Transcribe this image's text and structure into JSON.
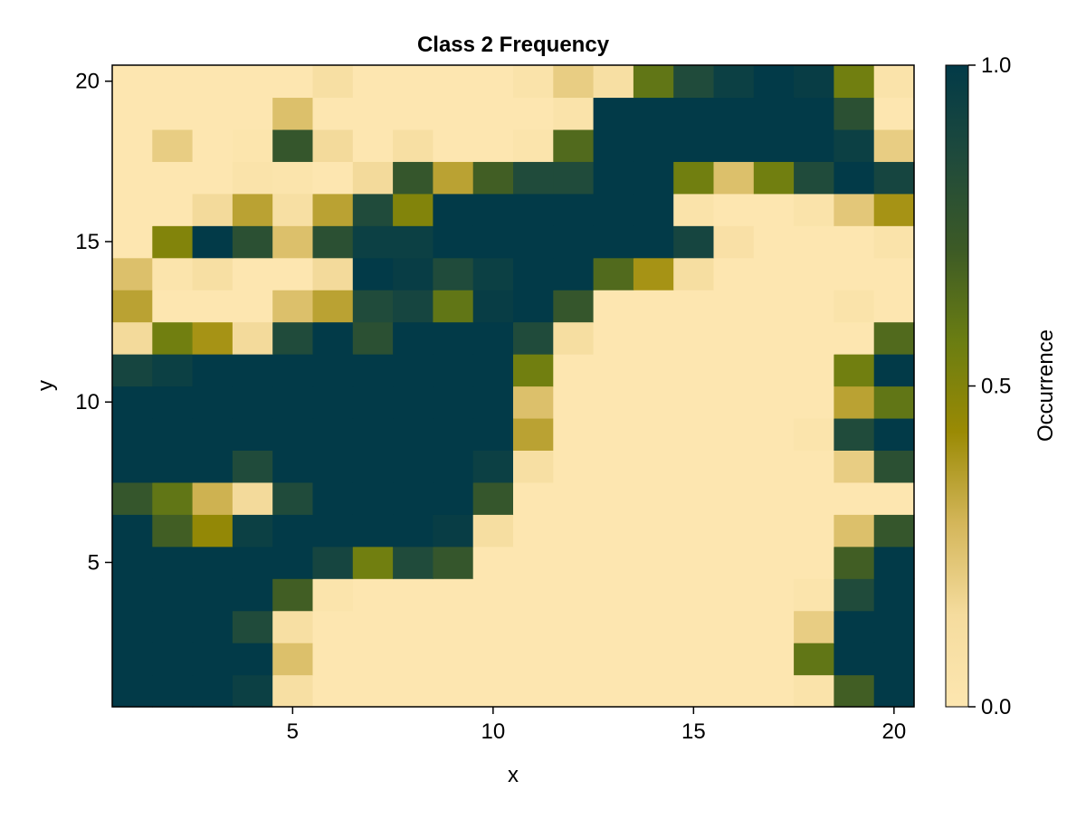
{
  "chart_data": {
    "type": "heatmap",
    "title": "Class 2 Frequency",
    "xlabel": "x",
    "ylabel": "y",
    "x": [
      1,
      2,
      3,
      4,
      5,
      6,
      7,
      8,
      9,
      10,
      11,
      12,
      13,
      14,
      15,
      16,
      17,
      18,
      19,
      20
    ],
    "y": [
      1,
      2,
      3,
      4,
      5,
      6,
      7,
      8,
      9,
      10,
      11,
      12,
      13,
      14,
      15,
      16,
      17,
      18,
      19,
      20
    ],
    "xlim": [
      0.5,
      20.5
    ],
    "ylim": [
      0.5,
      20.5
    ],
    "xticks": [
      5,
      10,
      15,
      20
    ],
    "yticks": [
      5,
      10,
      15,
      20
    ],
    "colorbar": {
      "label": "Occurrence",
      "range": [
        0.0,
        1.0
      ],
      "ticks": [
        0.0,
        0.5,
        1.0
      ],
      "tick_labels": [
        "0.0",
        "0.5",
        "1.0"
      ],
      "colormap": [
        "#fde6b0",
        "#f5dc9e",
        "#d4b65a",
        "#9a8a04",
        "#6a7d12",
        "#3c5a26",
        "#1f4a3c",
        "#023a48"
      ]
    },
    "values": [
      [
        1.0,
        1.0,
        1.0,
        0.95,
        0.1,
        0.0,
        0.0,
        0.0,
        0.0,
        0.0,
        0.0,
        0.0,
        0.0,
        0.0,
        0.0,
        0.0,
        0.0,
        0.05,
        0.7,
        1.0
      ],
      [
        1.0,
        1.0,
        1.0,
        1.0,
        0.25,
        0.0,
        0.0,
        0.0,
        0.0,
        0.0,
        0.0,
        0.0,
        0.0,
        0.0,
        0.0,
        0.0,
        0.0,
        0.6,
        1.0,
        1.0
      ],
      [
        1.0,
        1.0,
        1.0,
        0.85,
        0.1,
        0.0,
        0.0,
        0.0,
        0.0,
        0.0,
        0.0,
        0.0,
        0.0,
        0.0,
        0.0,
        0.0,
        0.0,
        0.2,
        1.0,
        1.0
      ],
      [
        1.0,
        1.0,
        1.0,
        1.0,
        0.7,
        0.03,
        0.0,
        0.0,
        0.0,
        0.0,
        0.0,
        0.0,
        0.0,
        0.0,
        0.0,
        0.0,
        0.0,
        0.03,
        0.85,
        1.0
      ],
      [
        1.0,
        1.0,
        1.0,
        1.0,
        1.0,
        0.9,
        0.55,
        0.85,
        0.75,
        0.0,
        0.0,
        0.0,
        0.0,
        0.0,
        0.0,
        0.0,
        0.0,
        0.0,
        0.7,
        1.0
      ],
      [
        1.0,
        0.7,
        0.45,
        0.95,
        1.0,
        1.0,
        1.0,
        1.0,
        0.97,
        0.12,
        0.0,
        0.0,
        0.0,
        0.0,
        0.0,
        0.0,
        0.0,
        0.0,
        0.25,
        0.75
      ],
      [
        0.75,
        0.6,
        0.3,
        0.15,
        0.85,
        1.0,
        1.0,
        1.0,
        1.0,
        0.75,
        0.0,
        0.0,
        0.0,
        0.0,
        0.0,
        0.0,
        0.0,
        0.0,
        0.0,
        0.0
      ],
      [
        1.0,
        1.0,
        1.0,
        0.85,
        1.0,
        1.0,
        1.0,
        1.0,
        1.0,
        0.95,
        0.1,
        0.0,
        0.0,
        0.0,
        0.0,
        0.0,
        0.0,
        0.0,
        0.2,
        0.8
      ],
      [
        1.0,
        1.0,
        1.0,
        1.0,
        1.0,
        1.0,
        1.0,
        1.0,
        1.0,
        1.0,
        0.35,
        0.0,
        0.0,
        0.0,
        0.0,
        0.0,
        0.0,
        0.03,
        0.85,
        1.0
      ],
      [
        1.0,
        1.0,
        1.0,
        1.0,
        1.0,
        1.0,
        1.0,
        1.0,
        1.0,
        1.0,
        0.25,
        0.0,
        0.0,
        0.0,
        0.0,
        0.0,
        0.0,
        0.0,
        0.35,
        0.6
      ],
      [
        0.9,
        0.95,
        1.0,
        1.0,
        1.0,
        1.0,
        1.0,
        1.0,
        1.0,
        1.0,
        0.55,
        0.0,
        0.0,
        0.0,
        0.0,
        0.0,
        0.0,
        0.0,
        0.55,
        1.0
      ],
      [
        0.15,
        0.55,
        0.4,
        0.15,
        0.85,
        1.0,
        0.8,
        1.0,
        1.0,
        1.0,
        0.85,
        0.12,
        0.0,
        0.0,
        0.0,
        0.0,
        0.0,
        0.0,
        0.0,
        0.65
      ],
      [
        0.35,
        0.0,
        0.0,
        0.0,
        0.25,
        0.35,
        0.85,
        0.9,
        0.6,
        0.97,
        1.0,
        0.75,
        0.0,
        0.0,
        0.0,
        0.0,
        0.0,
        0.0,
        0.05,
        0.0
      ],
      [
        0.25,
        0.03,
        0.1,
        0.0,
        0.0,
        0.15,
        1.0,
        0.97,
        0.85,
        0.95,
        1.0,
        1.0,
        0.65,
        0.4,
        0.12,
        0.0,
        0.0,
        0.0,
        0.0,
        0.0
      ],
      [
        0.0,
        0.5,
        1.0,
        0.8,
        0.25,
        0.8,
        0.95,
        0.95,
        1.0,
        1.0,
        1.0,
        1.0,
        1.0,
        1.0,
        0.9,
        0.08,
        0.0,
        0.0,
        0.0,
        0.05
      ],
      [
        0.0,
        0.0,
        0.15,
        0.35,
        0.1,
        0.35,
        0.85,
        0.5,
        1.0,
        1.0,
        1.0,
        1.0,
        1.0,
        1.0,
        0.05,
        0.0,
        0.0,
        0.05,
        0.22,
        0.4
      ],
      [
        0.0,
        0.0,
        0.0,
        0.05,
        0.03,
        0.0,
        0.15,
        0.75,
        0.35,
        0.7,
        0.85,
        0.85,
        1.0,
        1.0,
        0.55,
        0.25,
        0.55,
        0.85,
        1.0,
        0.9
      ],
      [
        0.0,
        0.2,
        0.0,
        0.02,
        0.75,
        0.15,
        0.0,
        0.1,
        0.0,
        0.0,
        0.03,
        0.65,
        1.0,
        1.0,
        1.0,
        1.0,
        1.0,
        1.0,
        0.95,
        0.2
      ],
      [
        0.0,
        0.0,
        0.0,
        0.0,
        0.25,
        0.0,
        0.0,
        0.0,
        0.0,
        0.0,
        0.0,
        0.05,
        1.0,
        1.0,
        1.0,
        1.0,
        1.0,
        1.0,
        0.8,
        0.0
      ],
      [
        0.0,
        0.0,
        0.0,
        0.0,
        0.0,
        0.1,
        0.0,
        0.0,
        0.0,
        0.0,
        0.05,
        0.2,
        0.1,
        0.6,
        0.85,
        0.95,
        1.0,
        0.97,
        0.55,
        0.05
      ]
    ]
  }
}
